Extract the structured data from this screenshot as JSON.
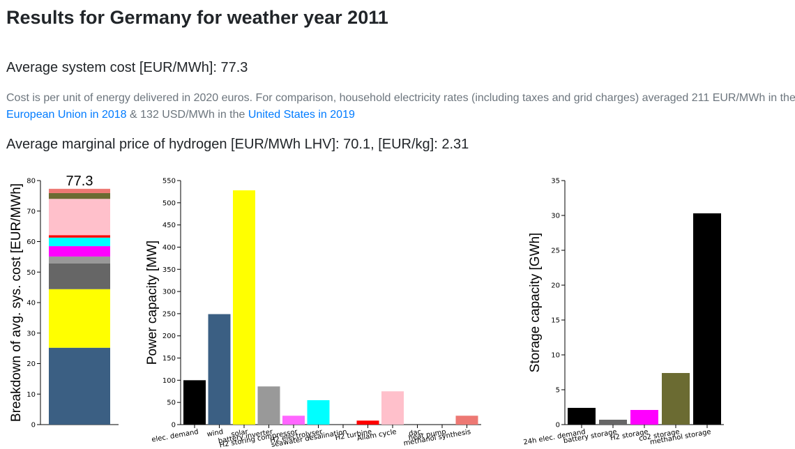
{
  "page": {
    "title": "Results for Germany for weather year 2011",
    "cost_label": "Average system cost [EUR/MWh]: 77.3",
    "desc_text1": "Cost is per unit of energy delivered in 2020 euros. For comparison, household electricity rates (including taxes and grid charges) averaged 211 EUR/MWh in the ",
    "desc_link1": "European Union in 2018",
    "desc_text2": " & 132 USD/MWh in the ",
    "desc_link2": "United States in 2019",
    "hydrogen_label": "Average marginal price of hydrogen [EUR/MWh LHV]: 70.1, [EUR/kg]: 2.31"
  },
  "chart_data": [
    {
      "type": "bar",
      "stacked": true,
      "ylabel": "Breakdown of avg. sys. cost [EUR/MWh]",
      "ylim": [
        0,
        80
      ],
      "yticks": [
        0,
        10,
        20,
        30,
        40,
        50,
        60,
        70,
        80
      ],
      "total_label": "77.3",
      "segments": [
        {
          "value": 25.2,
          "color": "#3b5f83"
        },
        {
          "value": 19.2,
          "color": "#ffff00"
        },
        {
          "value": 8.4,
          "color": "#666666"
        },
        {
          "value": 2.3,
          "color": "#999999"
        },
        {
          "value": 3.4,
          "color": "#ff00ff"
        },
        {
          "value": 2.8,
          "color": "#00ffff"
        },
        {
          "value": 0.8,
          "color": "#ff0000"
        },
        {
          "value": 11.9,
          "color": "#ffc0cb"
        },
        {
          "value": 1.9,
          "color": "#6b6b32"
        },
        {
          "value": 1.4,
          "color": "#ed7873"
        }
      ]
    },
    {
      "type": "bar",
      "ylabel": "Power capacity [MW]",
      "ylim": [
        0,
        550
      ],
      "yticks": [
        0,
        50,
        100,
        150,
        200,
        250,
        300,
        350,
        400,
        450,
        500,
        550
      ],
      "categories": [
        "elec. demand",
        "wind",
        "solar",
        "battery inverter",
        "H2 storing compressor",
        "H2 electrolyser",
        "seawater desalination",
        "H2 turbine",
        "Allam cycle",
        "dac",
        "heat pump",
        "methanol synthesis"
      ],
      "values": [
        100,
        249,
        528,
        86,
        20,
        55,
        0,
        9,
        75,
        0,
        0,
        20
      ],
      "colors": [
        "#000000",
        "#3b5f83",
        "#ffff00",
        "#999999",
        "#ff66ff",
        "#00ffff",
        "#888888",
        "#ff0000",
        "#ffc0cb",
        "#888888",
        "#888888",
        "#ed7873"
      ]
    },
    {
      "type": "bar",
      "ylabel": "Storage capacity [GWh]",
      "ylim": [
        0,
        35
      ],
      "yticks": [
        0,
        5,
        10,
        15,
        20,
        25,
        30,
        35
      ],
      "categories": [
        "24h elec. demand",
        "battery storage",
        "H2 storage",
        "co2 storage",
        "methanol storage"
      ],
      "values": [
        2.4,
        0.7,
        2.1,
        7.4,
        30.3
      ],
      "colors": [
        "#000000",
        "#666666",
        "#ff00ff",
        "#6b6b32",
        "#000000"
      ]
    }
  ]
}
